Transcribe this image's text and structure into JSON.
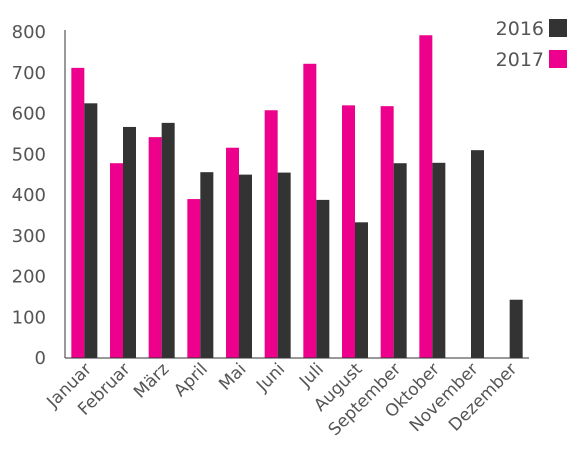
{
  "chart_data": {
    "type": "bar",
    "categories": [
      "Januar",
      "Februar",
      "März",
      "April",
      "Mai",
      "Juni",
      "Juli",
      "August",
      "September",
      "Oktober",
      "November",
      "Dezember"
    ],
    "series": [
      {
        "name": "2017",
        "color": "#ec008c",
        "values": [
          712,
          478,
          542,
          390,
          516,
          608,
          722,
          620,
          618,
          792,
          null,
          null
        ]
      },
      {
        "name": "2016",
        "color": "#333333",
        "values": [
          625,
          567,
          577,
          456,
          450,
          455,
          388,
          333,
          478,
          479,
          510,
          143
        ]
      }
    ],
    "ylim": [
      0,
      800
    ],
    "yticks": [
      0,
      100,
      200,
      300,
      400,
      500,
      600,
      700,
      800
    ],
    "legend": {
      "position": "top-right",
      "order": [
        "2016",
        "2017"
      ]
    },
    "grid": false,
    "title": "",
    "xlabel": "",
    "ylabel": ""
  }
}
